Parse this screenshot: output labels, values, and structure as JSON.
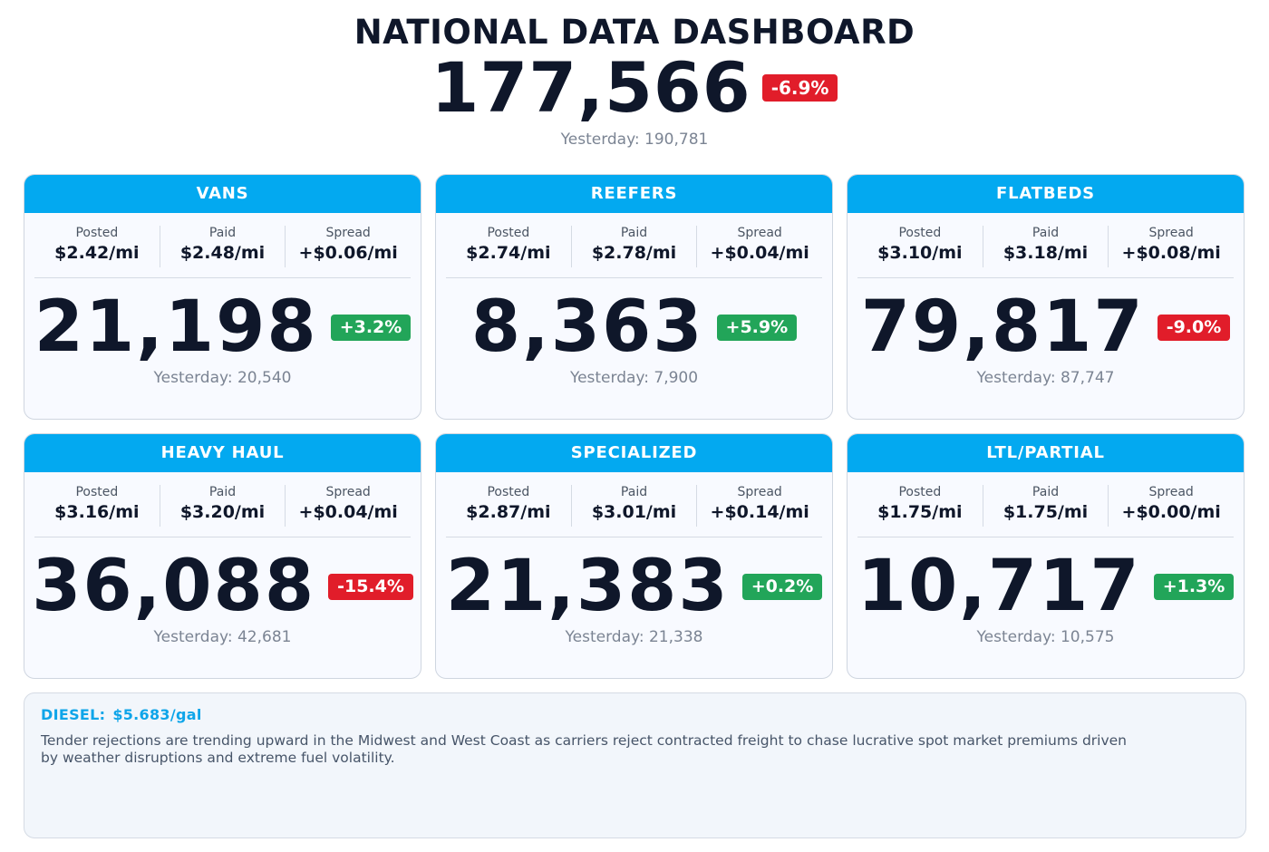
{
  "header": {
    "title": "NATIONAL DATA DASHBOARD",
    "total": "177,566",
    "change": "-6.9%",
    "yesterday": "Yesterday: 190,781"
  },
  "cards": [
    {
      "title": "VANS",
      "posted_label": "Posted",
      "posted": "$2.42/mi",
      "paid_label": "Paid",
      "paid": "$2.48/mi",
      "spread_label": "Spread",
      "spread": "+$0.06/mi",
      "count": "21,198",
      "change": "+3.2%",
      "yesterday": "Yesterday: 20,540"
    },
    {
      "title": "REEFERS",
      "posted_label": "Posted",
      "posted": "$2.74/mi",
      "paid_label": "Paid",
      "paid": "$2.78/mi",
      "spread_label": "Spread",
      "spread": "+$0.04/mi",
      "count": "8,363",
      "change": "+5.9%",
      "yesterday": "Yesterday: 7,900"
    },
    {
      "title": "FLATBEDS",
      "posted_label": "Posted",
      "posted": "$3.10/mi",
      "paid_label": "Paid",
      "paid": "$3.18/mi",
      "spread_label": "Spread",
      "spread": "+$0.08/mi",
      "count": "79,817",
      "change": "-9.0%",
      "yesterday": "Yesterday: 87,747"
    },
    {
      "title": "HEAVY HAUL",
      "posted_label": "Posted",
      "posted": "$3.16/mi",
      "paid_label": "Paid",
      "paid": "$3.20/mi",
      "spread_label": "Spread",
      "spread": "+$0.04/mi",
      "count": "36,088",
      "change": "-15.4%",
      "yesterday": "Yesterday: 42,681"
    },
    {
      "title": "SPECIALIZED",
      "posted_label": "Posted",
      "posted": "$2.87/mi",
      "paid_label": "Paid",
      "paid": "$3.01/mi",
      "spread_label": "Spread",
      "spread": "+$0.14/mi",
      "count": "21,383",
      "change": "+0.2%",
      "yesterday": "Yesterday: 21,338"
    },
    {
      "title": "LTL/PARTIAL",
      "posted_label": "Posted",
      "posted": "$1.75/mi",
      "paid_label": "Paid",
      "paid": "$1.75/mi",
      "spread_label": "Spread",
      "spread": "+$0.00/mi",
      "count": "10,717",
      "change": "+1.3%",
      "yesterday": "Yesterday: 10,575"
    }
  ],
  "news": {
    "diesel_label": "DIESEL:",
    "diesel_value": "$5.683/gal",
    "text": "Tender rejections are trending upward in the Midwest and West Coast as carriers reject contracted freight to chase lucrative spot market premiums driven by weather disruptions and extreme fuel volatility."
  },
  "colors": {
    "header_blue": "#03a9f0",
    "up_green": "#22a559",
    "down_red": "#e11d2a",
    "diesel_blue": "#0ea5e9"
  }
}
